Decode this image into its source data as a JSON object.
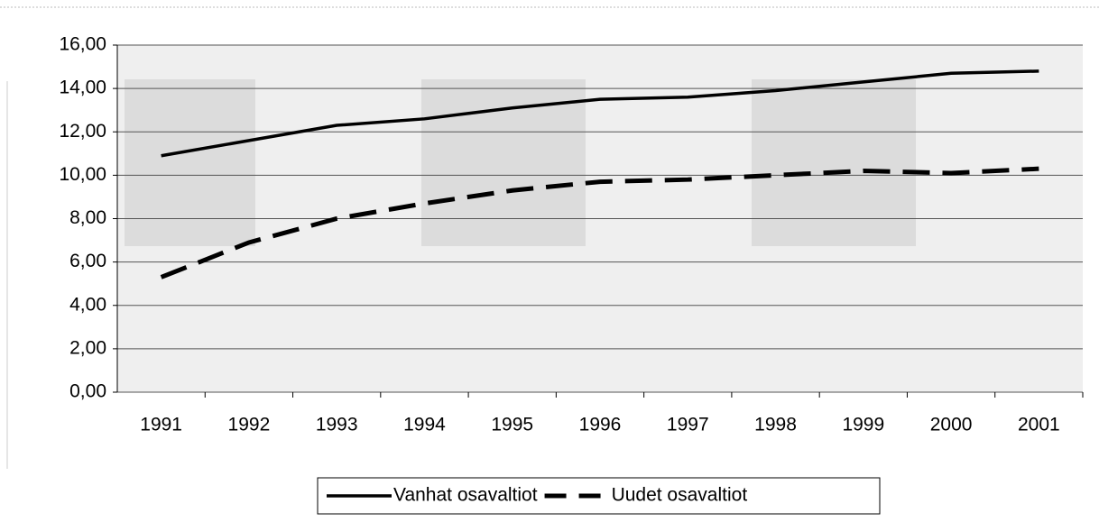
{
  "chart_data": {
    "type": "line",
    "categories": [
      "1991",
      "1992",
      "1993",
      "1994",
      "1995",
      "1996",
      "1997",
      "1998",
      "1999",
      "2000",
      "2001"
    ],
    "series": [
      {
        "name": "Vanhat osavaltiot",
        "color": "#000000",
        "dash": "solid",
        "values": [
          10.9,
          11.6,
          12.3,
          12.6,
          13.1,
          13.5,
          13.6,
          13.9,
          14.3,
          14.7,
          14.8
        ]
      },
      {
        "name": "Uudet osavaltiot",
        "color": "#000000",
        "dash": "dashed",
        "values": [
          5.3,
          6.9,
          8.0,
          8.7,
          9.3,
          9.7,
          9.8,
          10.0,
          10.2,
          10.1,
          10.3
        ]
      }
    ],
    "ylim": [
      0,
      16
    ],
    "yticks": [
      {
        "value": 0,
        "label": "0,00"
      },
      {
        "value": 2,
        "label": "2,00"
      },
      {
        "value": 4,
        "label": "4,00"
      },
      {
        "value": 6,
        "label": "6,00"
      },
      {
        "value": 8,
        "label": "8,00"
      },
      {
        "value": 10,
        "label": "10,00"
      },
      {
        "value": 12,
        "label": "12,00"
      },
      {
        "value": 14,
        "label": "14,00"
      },
      {
        "value": 16,
        "label": "16,00"
      }
    ],
    "grid": true,
    "legend": "bottom"
  }
}
